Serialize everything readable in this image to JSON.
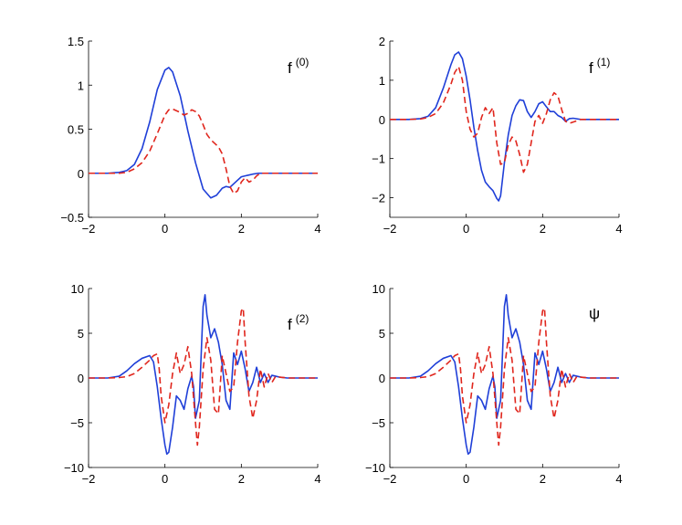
{
  "chart_data": [
    {
      "type": "line",
      "title": "",
      "annotation": {
        "base": "f",
        "sup": "(0)"
      },
      "xlim": [
        -2,
        4
      ],
      "ylim": [
        -0.5,
        1.5
      ],
      "xticks": [
        "−2",
        "0",
        "2",
        "4"
      ],
      "yticks": [
        "−0.5",
        "0",
        "0.5",
        "1",
        "1.5"
      ],
      "xtick_values": [
        -2,
        0,
        2,
        4
      ],
      "ytick_values": [
        -0.5,
        0,
        0.5,
        1,
        1.5
      ],
      "grid": false,
      "series": [
        {
          "style": "solid",
          "color": "#1f3fd8",
          "x": [
            -2,
            -1.5,
            -1.2,
            -1.0,
            -0.8,
            -0.6,
            -0.4,
            -0.2,
            0.0,
            0.1,
            0.2,
            0.4,
            0.6,
            0.8,
            1.0,
            1.2,
            1.35,
            1.5,
            1.6,
            1.7,
            1.8,
            1.9,
            2.0,
            2.1,
            2.2,
            2.3,
            2.45,
            2.6,
            3,
            4
          ],
          "y": [
            0,
            0,
            0.01,
            0.03,
            0.1,
            0.28,
            0.58,
            0.95,
            1.17,
            1.2,
            1.15,
            0.88,
            0.48,
            0.12,
            -0.18,
            -0.28,
            -0.25,
            -0.17,
            -0.15,
            -0.16,
            -0.12,
            -0.08,
            -0.04,
            -0.03,
            -0.02,
            -0.01,
            0,
            0,
            0,
            0
          ]
        },
        {
          "style": "dashed",
          "color": "#e0261d",
          "x": [
            -2,
            -1.5,
            -1.2,
            -1.0,
            -0.8,
            -0.6,
            -0.4,
            -0.2,
            0.0,
            0.1,
            0.2,
            0.3,
            0.4,
            0.5,
            0.6,
            0.7,
            0.8,
            0.9,
            1.0,
            1.1,
            1.2,
            1.3,
            1.4,
            1.5,
            1.6,
            1.7,
            1.8,
            1.9,
            2.0,
            2.1,
            2.2,
            2.3,
            2.4,
            2.5,
            3,
            4
          ],
          "y": [
            0,
            0,
            0.0,
            0.01,
            0.05,
            0.12,
            0.25,
            0.45,
            0.66,
            0.72,
            0.73,
            0.71,
            0.69,
            0.66,
            0.68,
            0.72,
            0.7,
            0.65,
            0.55,
            0.44,
            0.38,
            0.34,
            0.3,
            0.22,
            0.05,
            -0.15,
            -0.23,
            -0.2,
            -0.1,
            -0.05,
            -0.1,
            -0.08,
            -0.03,
            0,
            0,
            0
          ]
        }
      ]
    },
    {
      "type": "line",
      "title": "",
      "annotation": {
        "base": "f",
        "sup": "(1)"
      },
      "xlim": [
        -2,
        4
      ],
      "ylim": [
        -2.5,
        2
      ],
      "xticks": [
        "−2",
        "0",
        "2",
        "4"
      ],
      "yticks": [
        "−2",
        "−1",
        "0",
        "1",
        "2"
      ],
      "xtick_values": [
        -2,
        0,
        2,
        4
      ],
      "ytick_values": [
        -2,
        -1,
        0,
        1,
        2
      ],
      "grid": false,
      "series": [
        {
          "style": "solid",
          "color": "#1f3fd8",
          "x": [
            -2,
            -1.5,
            -1.2,
            -1.0,
            -0.8,
            -0.6,
            -0.4,
            -0.3,
            -0.2,
            -0.1,
            0.0,
            0.1,
            0.2,
            0.3,
            0.4,
            0.5,
            0.6,
            0.7,
            0.8,
            0.85,
            0.9,
            1.0,
            1.1,
            1.2,
            1.3,
            1.4,
            1.5,
            1.6,
            1.7,
            1.8,
            1.9,
            2.0,
            2.1,
            2.2,
            2.3,
            2.4,
            2.5,
            2.6,
            2.7,
            2.8,
            3.0,
            4
          ],
          "y": [
            0,
            0,
            0.02,
            0.08,
            0.3,
            0.8,
            1.4,
            1.65,
            1.72,
            1.55,
            1.1,
            0.5,
            -0.2,
            -0.8,
            -1.3,
            -1.6,
            -1.72,
            -1.82,
            -2.02,
            -2.08,
            -1.95,
            -1.1,
            -0.4,
            0.1,
            0.35,
            0.5,
            0.48,
            0.2,
            0.05,
            0.2,
            0.4,
            0.45,
            0.32,
            0.2,
            0.2,
            0.1,
            0.05,
            -0.05,
            0.02,
            0.03,
            0,
            0
          ]
        },
        {
          "style": "dashed",
          "color": "#e0261d",
          "x": [
            -2,
            -1.5,
            -1.2,
            -1.0,
            -0.8,
            -0.6,
            -0.4,
            -0.3,
            -0.2,
            -0.1,
            0.0,
            0.1,
            0.2,
            0.3,
            0.4,
            0.5,
            0.6,
            0.7,
            0.8,
            0.9,
            1.0,
            1.1,
            1.2,
            1.3,
            1.4,
            1.5,
            1.6,
            1.7,
            1.8,
            1.9,
            2.0,
            2.1,
            2.2,
            2.3,
            2.4,
            2.5,
            2.6,
            2.7,
            3.0,
            4
          ],
          "y": [
            0,
            0,
            0.01,
            0.05,
            0.15,
            0.42,
            0.9,
            1.2,
            1.35,
            1.0,
            0.2,
            -0.25,
            -0.45,
            -0.35,
            0.05,
            0.3,
            0.15,
            0.3,
            -0.6,
            -1.15,
            -1.1,
            -0.65,
            -0.45,
            -0.55,
            -0.9,
            -1.35,
            -1.15,
            -0.6,
            -0.05,
            0.1,
            -0.1,
            0.15,
            0.5,
            0.68,
            0.6,
            0.25,
            -0.05,
            -0.1,
            0,
            0
          ]
        }
      ]
    },
    {
      "type": "line",
      "title": "",
      "annotation": {
        "base": "f",
        "sup": "(2)"
      },
      "xlim": [
        -2,
        4
      ],
      "ylim": [
        -10,
        10
      ],
      "xticks": [
        "−2",
        "0",
        "2",
        "4"
      ],
      "yticks": [
        "−10",
        "−5",
        "0",
        "5",
        "10"
      ],
      "xtick_values": [
        -2,
        0,
        2,
        4
      ],
      "ytick_values": [
        -10,
        -5,
        0,
        5,
        10
      ],
      "grid": false,
      "series": [
        {
          "style": "solid",
          "color": "#1f3fd8",
          "x": [
            -2,
            -1.5,
            -1.2,
            -1.0,
            -0.8,
            -0.6,
            -0.4,
            -0.3,
            -0.2,
            -0.1,
            0.0,
            0.05,
            0.1,
            0.2,
            0.3,
            0.4,
            0.5,
            0.6,
            0.7,
            0.75,
            0.8,
            0.9,
            1.0,
            1.05,
            1.1,
            1.2,
            1.3,
            1.4,
            1.5,
            1.6,
            1.7,
            1.8,
            1.9,
            2.0,
            2.1,
            2.2,
            2.3,
            2.4,
            2.5,
            2.6,
            2.7,
            2.8,
            2.9,
            3.0,
            3.2,
            4
          ],
          "y": [
            0,
            0,
            0.2,
            0.8,
            1.6,
            2.2,
            2.5,
            1.8,
            -1.0,
            -4.5,
            -7.5,
            -8.5,
            -8.3,
            -5.5,
            -2.0,
            -2.5,
            -3.5,
            -1.2,
            0.2,
            -1.0,
            -4.5,
            -2.5,
            8.0,
            9.3,
            7.0,
            4.5,
            5.5,
            4.0,
            1.5,
            -2.5,
            -3.5,
            2.8,
            1.5,
            3.0,
            1.0,
            -1.5,
            -0.5,
            1.2,
            -0.5,
            0.5,
            -0.5,
            0.3,
            0.2,
            0.1,
            0,
            0
          ]
        },
        {
          "style": "dashed",
          "color": "#e0261d",
          "x": [
            -2,
            -1.5,
            -1.2,
            -1.0,
            -0.8,
            -0.6,
            -0.4,
            -0.3,
            -0.2,
            -0.15,
            -0.1,
            0.0,
            0.1,
            0.2,
            0.3,
            0.4,
            0.5,
            0.6,
            0.7,
            0.8,
            0.85,
            0.9,
            1.0,
            1.1,
            1.2,
            1.3,
            1.4,
            1.5,
            1.6,
            1.7,
            1.8,
            1.9,
            2.0,
            2.05,
            2.1,
            2.2,
            2.3,
            2.4,
            2.5,
            2.6,
            2.7,
            2.8,
            2.9,
            3.0,
            3.2,
            4
          ],
          "y": [
            0,
            0,
            0.05,
            0.15,
            0.5,
            1.2,
            2.0,
            2.5,
            2.7,
            1.0,
            -2.0,
            -5.0,
            -3.0,
            0.5,
            2.8,
            0.5,
            1.5,
            3.5,
            0.5,
            -5.0,
            -7.5,
            -5.5,
            1.0,
            4.5,
            2.0,
            -3.5,
            -4.0,
            2.5,
            0.5,
            -1.5,
            -1.0,
            4.0,
            7.5,
            7.8,
            4.0,
            -2.0,
            -4.5,
            -2.5,
            1.0,
            -1.0,
            0.5,
            -0.5,
            0.2,
            0.1,
            0,
            0
          ]
        }
      ]
    },
    {
      "type": "line",
      "title": "",
      "annotation": {
        "base": "ψ",
        "sup": ""
      },
      "xlim": [
        -2,
        4
      ],
      "ylim": [
        -10,
        10
      ],
      "xticks": [
        "−2",
        "0",
        "2",
        "4"
      ],
      "yticks": [
        "−10",
        "−5",
        "0",
        "5",
        "10"
      ],
      "xtick_values": [
        -2,
        0,
        2,
        4
      ],
      "ytick_values": [
        -10,
        -5,
        0,
        5,
        10
      ],
      "grid": false,
      "series": [
        {
          "style": "solid",
          "color": "#1f3fd8",
          "x": [
            -2,
            -1.5,
            -1.2,
            -1.0,
            -0.8,
            -0.6,
            -0.4,
            -0.3,
            -0.2,
            -0.1,
            0.0,
            0.05,
            0.1,
            0.2,
            0.3,
            0.4,
            0.5,
            0.6,
            0.7,
            0.75,
            0.8,
            0.9,
            1.0,
            1.05,
            1.1,
            1.2,
            1.3,
            1.4,
            1.5,
            1.6,
            1.7,
            1.8,
            1.9,
            2.0,
            2.1,
            2.2,
            2.3,
            2.4,
            2.5,
            2.6,
            2.7,
            2.8,
            2.9,
            3.0,
            3.2,
            4
          ],
          "y": [
            0,
            0,
            0.2,
            0.8,
            1.6,
            2.2,
            2.5,
            1.8,
            -1.0,
            -4.5,
            -7.5,
            -8.5,
            -8.3,
            -5.5,
            -2.0,
            -2.5,
            -3.5,
            -1.2,
            0.2,
            -1.0,
            -4.5,
            -2.5,
            8.0,
            9.3,
            7.0,
            4.5,
            5.5,
            4.0,
            1.5,
            -2.5,
            -3.5,
            2.8,
            1.5,
            3.0,
            1.0,
            -1.5,
            -0.5,
            1.2,
            -0.5,
            0.5,
            -0.5,
            0.3,
            0.2,
            0.1,
            0,
            0
          ]
        },
        {
          "style": "dashed",
          "color": "#e0261d",
          "x": [
            -2,
            -1.5,
            -1.2,
            -1.0,
            -0.8,
            -0.6,
            -0.4,
            -0.3,
            -0.2,
            -0.15,
            -0.1,
            0.0,
            0.1,
            0.2,
            0.3,
            0.4,
            0.5,
            0.6,
            0.7,
            0.8,
            0.85,
            0.9,
            1.0,
            1.1,
            1.2,
            1.3,
            1.4,
            1.5,
            1.6,
            1.7,
            1.8,
            1.9,
            2.0,
            2.05,
            2.1,
            2.2,
            2.3,
            2.4,
            2.5,
            2.6,
            2.7,
            2.8,
            2.9,
            3.0,
            3.2,
            4
          ],
          "y": [
            0,
            0,
            0.05,
            0.15,
            0.5,
            1.2,
            2.0,
            2.5,
            2.7,
            1.0,
            -2.0,
            -5.0,
            -3.0,
            0.5,
            2.8,
            0.5,
            1.5,
            3.5,
            0.5,
            -5.0,
            -7.5,
            -5.5,
            1.0,
            4.5,
            2.0,
            -3.5,
            -4.0,
            2.5,
            0.5,
            -1.5,
            -1.0,
            4.0,
            7.5,
            7.8,
            4.0,
            -2.0,
            -4.5,
            -2.5,
            1.0,
            -1.0,
            0.5,
            -0.5,
            0.2,
            0.1,
            0,
            0
          ]
        }
      ]
    }
  ]
}
